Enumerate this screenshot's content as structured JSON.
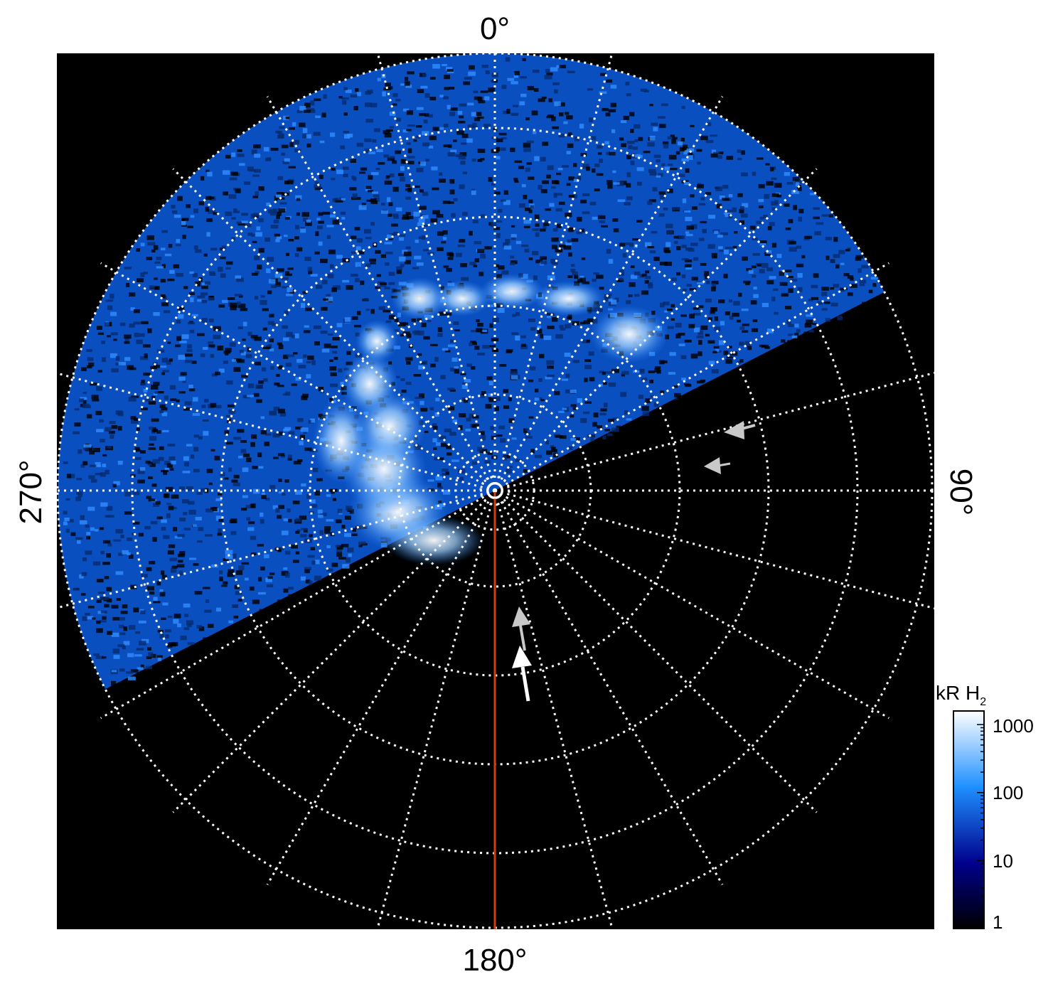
{
  "figure": {
    "angle_labels": {
      "top": "0°",
      "right": "90°",
      "bottom": "180°",
      "left": "270°"
    },
    "colorbar": {
      "title_main": "kR H",
      "title_sub": "2",
      "scale": "log",
      "ticks": [
        "1000",
        "100",
        "10",
        "1"
      ],
      "colors": [
        "#ffffff",
        "#1e90ff",
        "#00008b",
        "#000000"
      ]
    },
    "background_color": "#000000",
    "grid_color": "#ffffff",
    "meridian_line_color": "#d23c0f",
    "emission_colors": [
      "#062a6e",
      "#0b55c8",
      "#2f8cff",
      "#9fd0ff",
      "#ffffff"
    ],
    "arrow_colors": [
      "#c8c8c8",
      "#ffffff"
    ]
  }
}
